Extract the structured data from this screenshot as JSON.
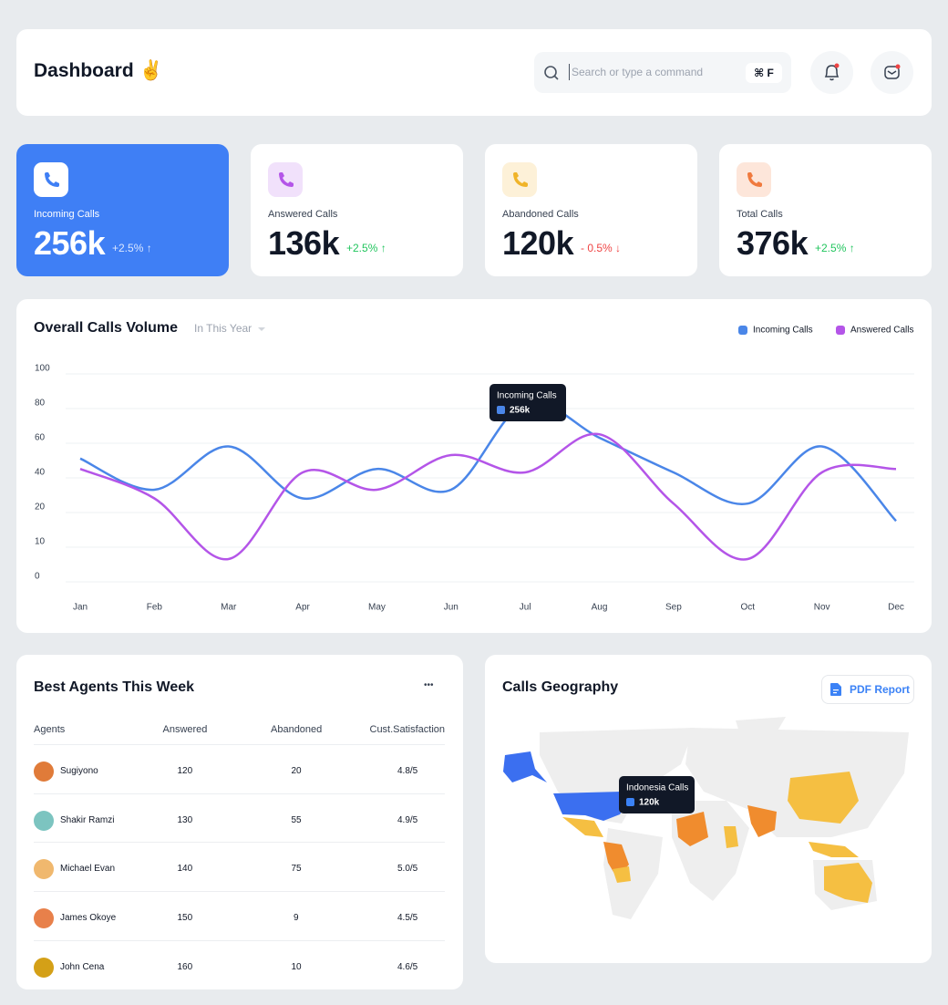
{
  "header": {
    "title": "Dashboard ✌️",
    "search_placeholder": "Search or type a command",
    "shortcut": "⌘ F"
  },
  "stats": [
    {
      "label": "Incoming Calls",
      "value": "256k",
      "change": "+2.5% ↑"
    },
    {
      "label": "Answered Calls",
      "value": "136k",
      "change": "+2.5% ↑"
    },
    {
      "label": "Abandoned Calls",
      "value": "120k",
      "change": "- 0.5% ↓"
    },
    {
      "label": "Total Calls",
      "value": "376k",
      "change": "+2.5% ↑"
    }
  ],
  "chart_data": {
    "type": "line",
    "title": "Overall Calls Volume",
    "filter": "In This Year",
    "categories": [
      "Jan",
      "Feb",
      "Mar",
      "Apr",
      "May",
      "Jun",
      "Jul",
      "Aug",
      "Sep",
      "Oct",
      "Nov",
      "Dec"
    ],
    "series": [
      {
        "name": "Incoming Calls",
        "color": "#4a86e8",
        "values": [
          48,
          30,
          55,
          25,
          42,
          30,
          80,
          60,
          40,
          22,
          55,
          16
        ]
      },
      {
        "name": "Answered Calls",
        "color": "#b455e8",
        "values": [
          42,
          25,
          5,
          40,
          30,
          50,
          40,
          62,
          22,
          5,
          40,
          42
        ]
      }
    ],
    "ylim": [
      0,
      100
    ],
    "yticks": [
      0,
      10,
      20,
      40,
      60,
      80,
      100
    ],
    "grid": true,
    "tooltip": {
      "title": "Incoming Calls",
      "value": "256k"
    }
  },
  "agents": {
    "title": "Best Agents This Week",
    "menu": "•••",
    "columns": [
      "Agents",
      "Answered",
      "Abandoned",
      "Cust.Satisfaction"
    ],
    "rows": [
      [
        "Sugiyono",
        "120",
        "20",
        "4.8/5"
      ],
      [
        "Shakir Ramzi",
        "130",
        "55",
        "4.9/5"
      ],
      [
        "Michael Evan",
        "140",
        "75",
        "5.0/5"
      ],
      [
        "James Okoye",
        "150",
        "9",
        "4.5/5"
      ],
      [
        "John Cena",
        "160",
        "10",
        "4.6/5"
      ]
    ]
  },
  "geography": {
    "title": "Calls Geography",
    "button": "PDF Report",
    "tooltip": {
      "title": "Indonesia Calls",
      "value": "120k"
    }
  }
}
